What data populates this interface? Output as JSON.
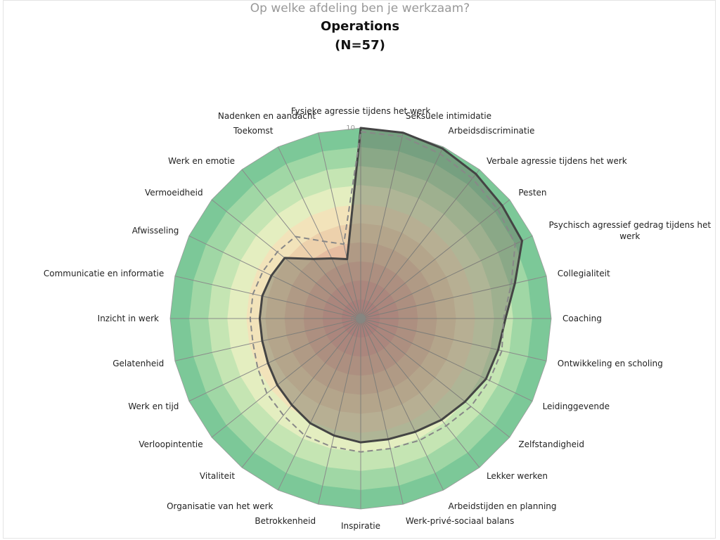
{
  "chart_data": {
    "type": "radar",
    "subtitle": "Op welke afdeling ben je werkzaam?",
    "title": "Operations",
    "note": "(N=57)",
    "categories": [
      "Fysieke agressie tijdens het werk",
      "Seksuele intimidatie",
      "Arbeidsdiscriminatie",
      "Verbale agressie tijdens het werk",
      "Pesten",
      "Psychisch agressief gedrag tijdens het werk",
      "Collegialiteit",
      "Coaching",
      "Ontwikkeling en scholing",
      "Leidinggevende",
      "Zelfstandigheid",
      "Lekker werken",
      "Arbeidstijden en planning",
      "Werk-privé-sociaal balans",
      "Inspiratie",
      "Betrokkenheid",
      "Organisatie van het werk",
      "Vitaliteit",
      "Verloopintentie",
      "Werk en tijd",
      "Gelatenheid",
      "Inzicht in werk",
      "Communicatie en informatie",
      "Afwisseling",
      "Vermoeidheid",
      "Werk en emotie",
      "Toekomst",
      "Nadenken en aandacht"
    ],
    "series": [
      {
        "color": "#444444",
        "style": "solid",
        "fill": true,
        "values": [
          10,
          10,
          9.9,
          9.7,
          9.5,
          9.4,
          8.3,
          7.6,
          7.4,
          7.3,
          7.0,
          6.8,
          6.6,
          6.5,
          6.5,
          6.3,
          6.1,
          5.8,
          5.6,
          5.4,
          5.3,
          5.3,
          5.3,
          5.2,
          5.1,
          4.0,
          3.5,
          3.2
        ]
      },
      {
        "color": "#888888",
        "style": "dashed",
        "fill": false,
        "values": [
          9.8,
          9.8,
          9.6,
          9.4,
          9.2,
          9.0,
          8.1,
          7.5,
          7.6,
          7.5,
          7.4,
          7.2,
          7.1,
          7.0,
          7.0,
          6.9,
          6.8,
          6.5,
          6.3,
          6.0,
          5.8,
          5.8,
          5.8,
          5.7,
          5.6,
          5.5,
          4.5,
          4.0
        ]
      }
    ],
    "ylim": [
      0,
      10
    ],
    "yticks": [
      0,
      10
    ],
    "band_colors": [
      "#d98a8c",
      "#dc9a92",
      "#e0aa98",
      "#e6bda1",
      "#edd1ac",
      "#f2e3ba",
      "#e4eec0",
      "#c5e5b3",
      "#a0d7a5",
      "#7cc898"
    ]
  }
}
